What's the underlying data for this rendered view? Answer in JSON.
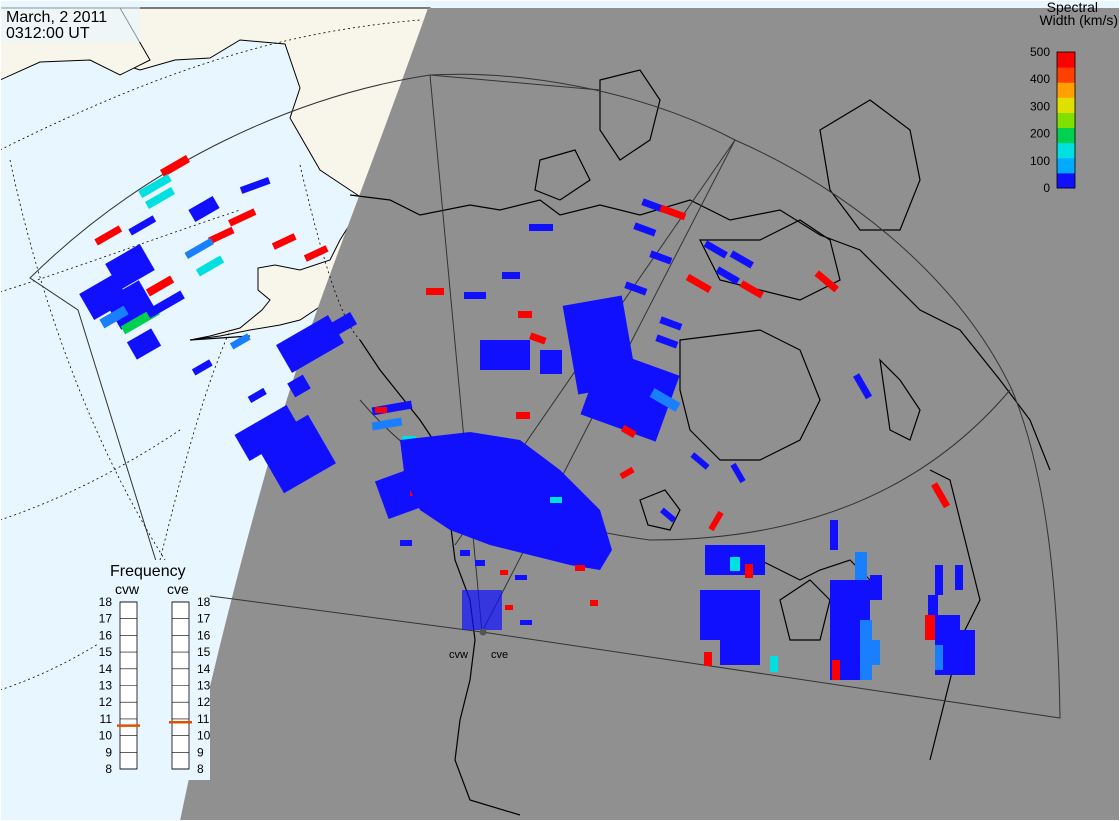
{
  "header": {
    "date": "March, 2 2011",
    "time": "0312:00 UT"
  },
  "colorbar": {
    "title_line1": "Spectral",
    "title_line2": "Width (km/s)",
    "ticks": [
      "500",
      "400",
      "300",
      "200",
      "100",
      "0"
    ],
    "value_range": [
      0,
      500
    ],
    "palette": [
      "#1010ff",
      "#00aaff",
      "#00e0e0",
      "#00d050",
      "#80e000",
      "#e0e000",
      "#ffa000",
      "#ff4000",
      "#ff0000"
    ]
  },
  "frequency_panel": {
    "title": "Frequency",
    "ticks": [
      "18",
      "17",
      "16",
      "15",
      "14",
      "13",
      "12",
      "11",
      "10",
      "9",
      "8"
    ],
    "range": [
      8,
      18
    ],
    "radars": [
      {
        "name": "cvw",
        "frequency_mhz": 10.6
      },
      {
        "name": "cve",
        "frequency_mhz": 10.8
      }
    ],
    "marker_color": "#e05000"
  },
  "radar_sites": [
    {
      "code": "cvw"
    },
    {
      "code": "cve"
    }
  ],
  "colors": {
    "ocean_sunlit": "#e8f6ff",
    "land_sunlit": "#f8f6ea",
    "night_side": "#909090",
    "scatter_low": "#1010ff",
    "scatter_high": "#ff0000"
  }
}
